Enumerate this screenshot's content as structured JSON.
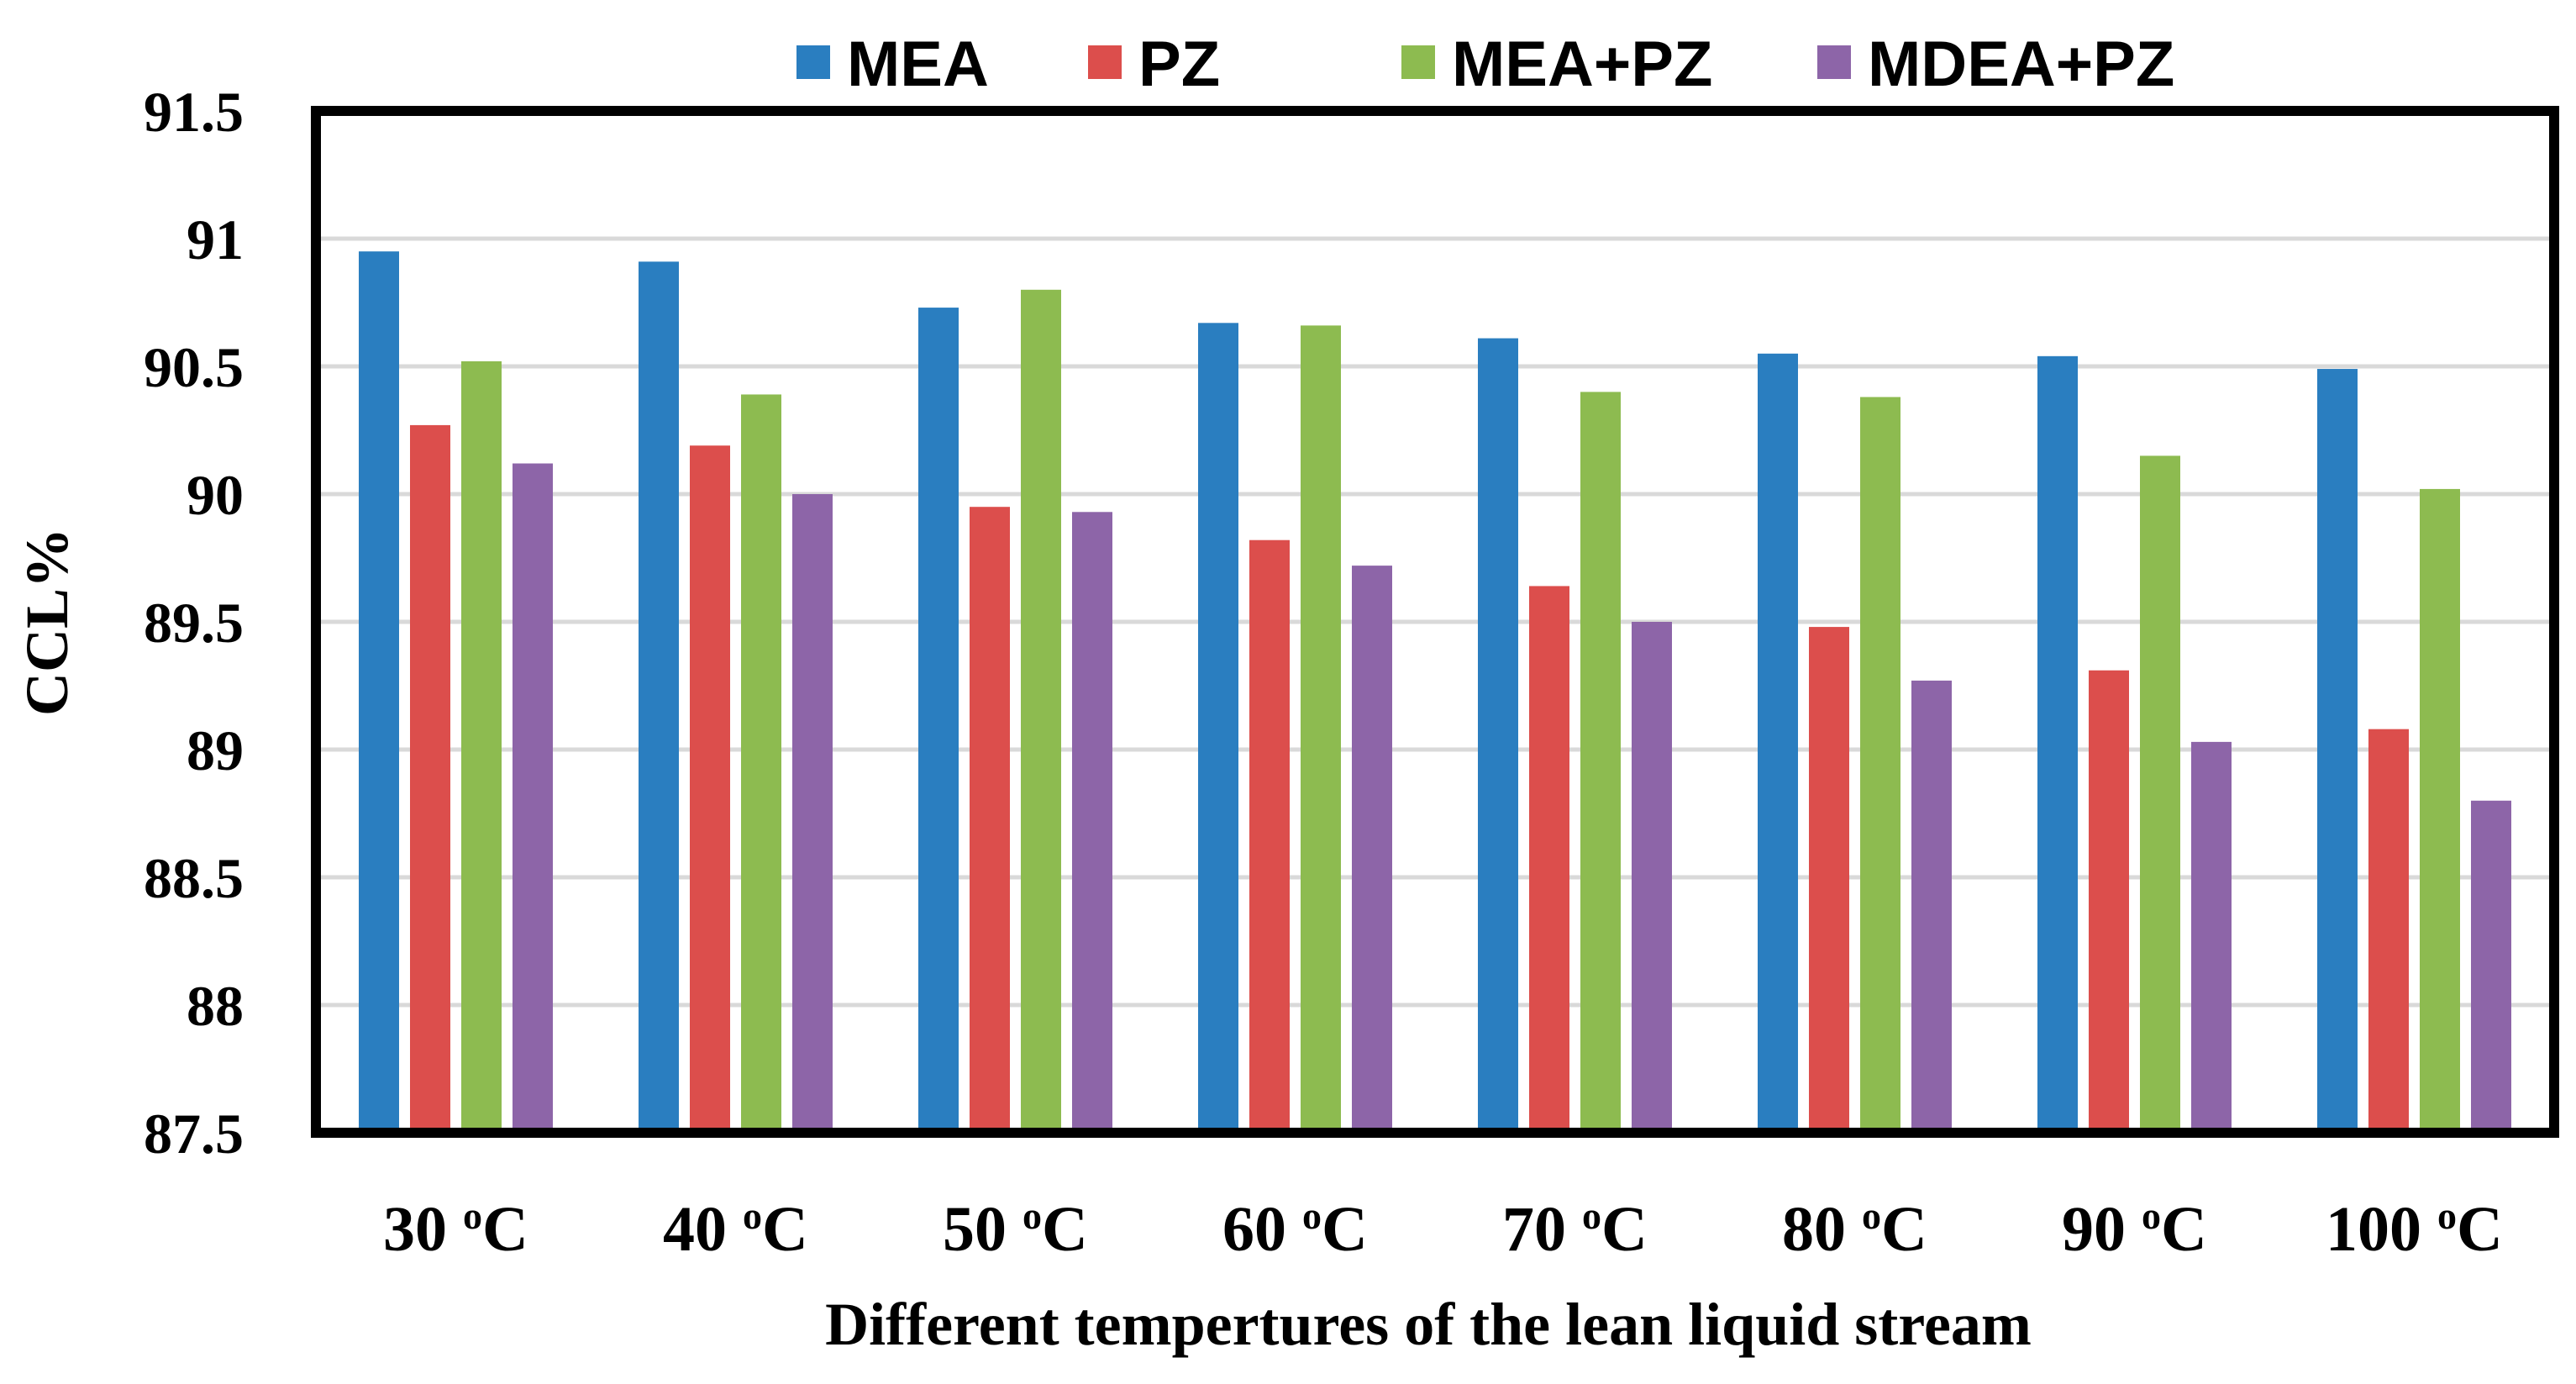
{
  "chart_data": {
    "type": "bar",
    "categories": [
      {
        "num": "30 ",
        "sup": "o",
        "unit": "C"
      },
      {
        "num": "40 ",
        "sup": "o",
        "unit": "C"
      },
      {
        "num": "50 ",
        "sup": "o",
        "unit": "C"
      },
      {
        "num": "60 ",
        "sup": "o",
        "unit": "C"
      },
      {
        "num": "70 ",
        "sup": "o",
        "unit": "C"
      },
      {
        "num": "80 ",
        "sup": "o",
        "unit": "C"
      },
      {
        "num": "90 ",
        "sup": "o",
        "unit": "C"
      },
      {
        "num": "100 ",
        "sup": "o",
        "unit": "C"
      }
    ],
    "series": [
      {
        "name": "MEA",
        "color": "#2A7EC0",
        "values": [
          90.95,
          90.91,
          90.73,
          90.67,
          90.61,
          90.55,
          90.54,
          90.49
        ]
      },
      {
        "name": "PZ",
        "color": "#DC4E4C",
        "values": [
          90.27,
          90.19,
          89.95,
          89.82,
          89.64,
          89.48,
          89.31,
          89.08
        ]
      },
      {
        "name": "MEA+PZ",
        "color": "#8DBB50",
        "values": [
          90.52,
          90.39,
          90.8,
          90.66,
          90.4,
          90.38,
          90.15,
          90.02
        ]
      },
      {
        "name": "MDEA+PZ",
        "color": "#8D65A8",
        "values": [
          90.12,
          90.0,
          89.93,
          89.72,
          89.5,
          89.27,
          89.03,
          88.8
        ]
      }
    ],
    "ylim": [
      87.5,
      91.5
    ],
    "yticks": [
      "87.5",
      "88",
      "88.5",
      "89",
      "89.5",
      "90",
      "90.5",
      "91",
      "91.5"
    ],
    "xlabel": "Different tempertures of the lean liquid stream",
    "ylabel": "CCL%",
    "grid": true,
    "legend_position": "top"
  }
}
